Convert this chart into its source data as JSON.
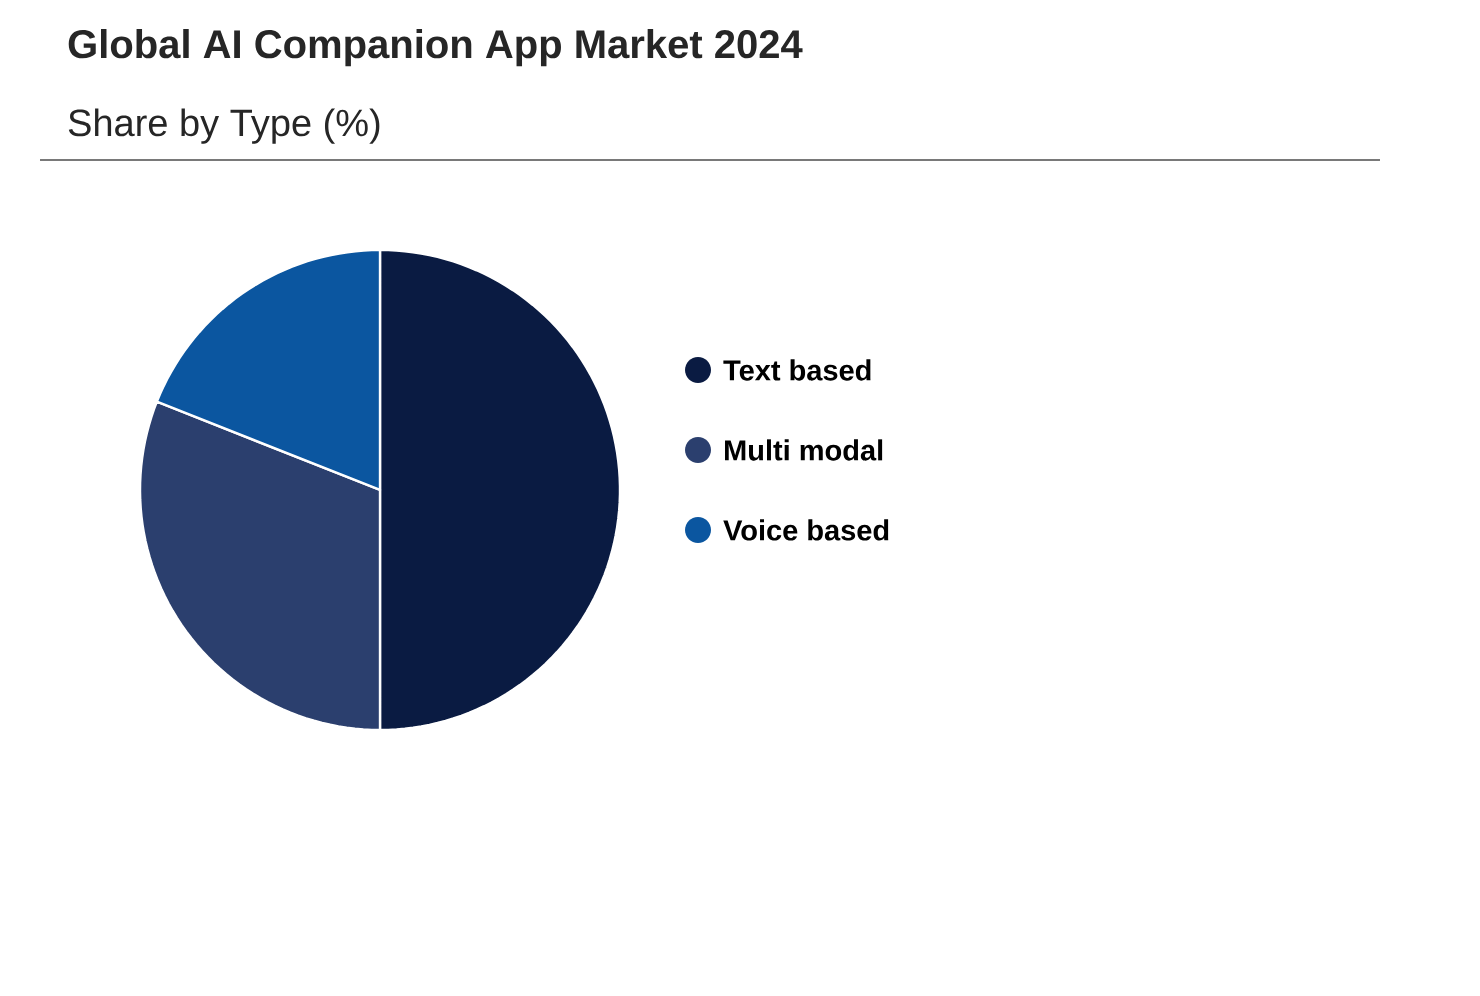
{
  "chart_data": {
    "type": "pie",
    "title": "Global AI Companion App Market 2024",
    "subtitle": "Share by Type (%)",
    "categories": [
      "Text based",
      "Multi modal",
      "Voice based"
    ],
    "values": [
      50,
      31,
      19
    ],
    "colors": [
      "#0a1b42",
      "#2b3f6e",
      "#0b56a0"
    ],
    "legend": "right"
  }
}
